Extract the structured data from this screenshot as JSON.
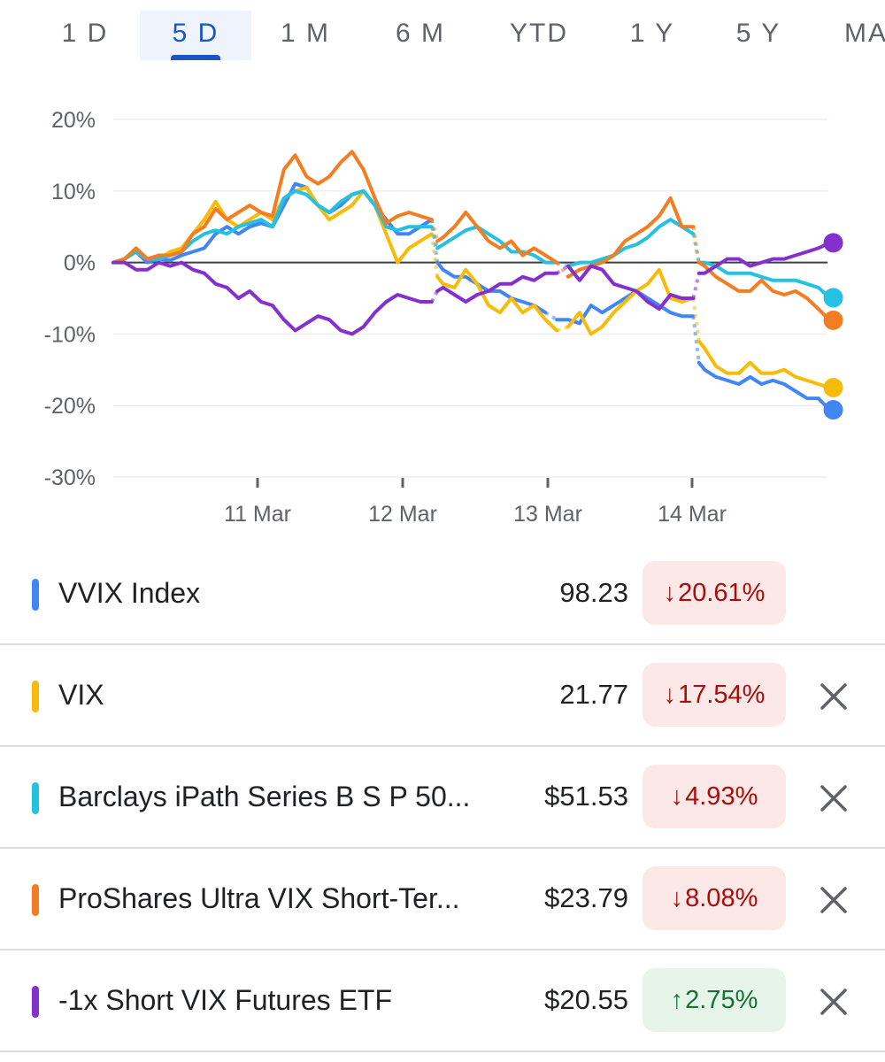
{
  "tabs": [
    {
      "label": "1 D",
      "active": false
    },
    {
      "label": "5 D",
      "active": true
    },
    {
      "label": "1 M",
      "active": false
    },
    {
      "label": "6 M",
      "active": false
    },
    {
      "label": "YTD",
      "active": false
    },
    {
      "label": "1 Y",
      "active": false
    },
    {
      "label": "5 Y",
      "active": false
    },
    {
      "label": "MAX",
      "active": false
    }
  ],
  "chart_data": {
    "type": "line",
    "y_unit": "%",
    "ylim": [
      -30,
      20
    ],
    "y_ticks": [
      "20%",
      "10%",
      "0%",
      "-10%",
      "-20%",
      "-30%"
    ],
    "y_tick_values": [
      20,
      10,
      0,
      -10,
      -20,
      -30
    ],
    "x_labels": [
      "11 Mar",
      "12 Mar",
      "13 Mar",
      "14 Mar"
    ],
    "grid": true,
    "series": [
      {
        "name": "VVIX Index",
        "color": "#4285f4",
        "segments": [
          [
            0,
            0,
            1,
            0.5,
            2,
            1.5,
            3,
            0,
            4,
            0.5,
            5,
            0.3,
            6,
            1,
            7,
            1.5,
            8,
            2,
            9,
            4,
            10,
            5,
            11,
            4,
            12,
            5,
            13,
            5.5,
            14,
            5,
            15,
            8,
            16,
            11,
            17,
            10.5,
            18,
            8,
            19,
            7,
            20,
            8,
            21,
            9.5,
            22,
            10,
            23,
            8,
            24,
            6,
            25,
            4,
            26,
            4,
            27,
            5,
            28,
            6
          ],
          [
            28.5,
            0,
            29,
            -1,
            30,
            -2,
            31,
            -2,
            32,
            -3,
            33,
            -4,
            34,
            -4,
            35,
            -5,
            36,
            -5.5,
            37,
            -6,
            38,
            -7
          ],
          [
            39,
            -8,
            40,
            -8,
            41,
            -8.5,
            42,
            -6,
            43,
            -7,
            44,
            -6,
            45,
            -5,
            46,
            -4,
            47,
            -5,
            48,
            -6,
            49,
            -7,
            50,
            -7.5,
            51,
            -7.5
          ],
          [
            51.5,
            -14,
            52,
            -15,
            53,
            -16,
            54,
            -16.5,
            55,
            -17,
            56,
            -16,
            57,
            -17,
            58,
            -16.5,
            59,
            -17,
            60,
            -18,
            61,
            -19,
            62,
            -19,
            63,
            -20.6
          ]
        ]
      },
      {
        "name": "VIX",
        "color": "#f9bb09",
        "segments": [
          [
            0,
            0,
            1,
            0.5,
            2,
            1.5,
            3,
            0.5,
            4,
            0.5,
            5,
            1.5,
            6,
            2,
            7,
            4,
            8,
            6,
            9,
            8.5,
            10,
            6,
            11,
            5,
            12,
            6,
            13,
            7,
            14,
            6,
            15,
            9,
            16,
            10,
            17,
            10.5,
            18,
            8,
            19,
            6,
            20,
            7,
            21,
            8,
            22,
            10,
            23,
            8,
            24,
            4,
            25,
            0,
            26,
            2,
            27,
            3,
            28,
            4
          ],
          [
            28.5,
            -2,
            29,
            -3,
            30,
            -3.5,
            31,
            -1,
            32,
            -3,
            33,
            -6,
            34,
            -7,
            35,
            -5,
            36,
            -7,
            37,
            -6,
            38,
            -8,
            39,
            -9.5
          ],
          [
            40,
            -9,
            41,
            -7,
            42,
            -10,
            43,
            -9,
            44,
            -7,
            45,
            -5.5,
            46,
            -4,
            47,
            -3,
            48,
            -1,
            49,
            -5,
            50,
            -5.5,
            51,
            -5
          ],
          [
            51.5,
            -11,
            52,
            -12,
            53,
            -14.5,
            54,
            -15.5,
            55,
            -15.5,
            56,
            -14,
            57,
            -15.5,
            58,
            -15.5,
            59,
            -15,
            60,
            -16,
            61,
            -16.5,
            62,
            -17,
            63,
            -17.5
          ]
        ]
      },
      {
        "name": "Barclays iPath Series B S P 50...",
        "color": "#24c1e0",
        "segments": [
          [
            0,
            0,
            1,
            0.5,
            2,
            1.5,
            3,
            0.5,
            4,
            0.5,
            5,
            1,
            6,
            1.5,
            7,
            3,
            8,
            4,
            9,
            4.5,
            10,
            4,
            11,
            5,
            12,
            5.5,
            13,
            6,
            14,
            5,
            15,
            9,
            16,
            10,
            17,
            9.5,
            18,
            8,
            19,
            7,
            20,
            8.5,
            21,
            9.5,
            22,
            10,
            23,
            8,
            24,
            5,
            25,
            4.5,
            26,
            5,
            27,
            5,
            28,
            5
          ],
          [
            28.5,
            2,
            29,
            2.5,
            30,
            3.5,
            31,
            4.5,
            32,
            5,
            33,
            4,
            34,
            3,
            35,
            1.5,
            36,
            1.5,
            37,
            1,
            38,
            0,
            39,
            0
          ],
          [
            40,
            -0.5,
            41,
            0,
            42,
            0,
            43,
            0.5,
            44,
            1,
            45,
            2,
            46,
            2.5,
            47,
            3.5,
            48,
            5,
            49,
            6,
            50,
            5,
            51,
            4
          ],
          [
            51.5,
            0,
            52,
            0,
            53,
            -0.5,
            54,
            -1.5,
            55,
            -1.5,
            56,
            -1.5,
            57,
            -2,
            58,
            -2.5,
            59,
            -2.5,
            60,
            -2.5,
            61,
            -3,
            62,
            -3.5,
            63,
            -4.93
          ]
        ]
      },
      {
        "name": "ProShares Ultra VIX Short-Ter...",
        "color": "#f37d22",
        "segments": [
          [
            0,
            0,
            1,
            0.5,
            2,
            2,
            3,
            0.5,
            4,
            1,
            5,
            1,
            6,
            1.5,
            7,
            4,
            8,
            5,
            9,
            7.5,
            10,
            6,
            11,
            7,
            12,
            8,
            13,
            7,
            14,
            6.5,
            15,
            13,
            16,
            15,
            17,
            12,
            18,
            11,
            19,
            12,
            20,
            14,
            21,
            15.5,
            22,
            13,
            23,
            9,
            24,
            5.5,
            25,
            6.5,
            26,
            7,
            27,
            6.5,
            28,
            6
          ],
          [
            28.5,
            3,
            29,
            3.5,
            30,
            5,
            31,
            7,
            32,
            5,
            33,
            3,
            34,
            2,
            35,
            3,
            36,
            1,
            37,
            2,
            38,
            1,
            39,
            0
          ],
          [
            40,
            -2,
            41,
            -1,
            42,
            -0.5,
            43,
            0,
            44,
            1,
            45,
            3,
            46,
            4,
            47,
            5,
            48,
            6.5,
            49,
            9,
            50,
            5,
            51,
            5
          ],
          [
            51.5,
            0,
            52,
            -0.5,
            53,
            -2,
            54,
            -3,
            55,
            -4,
            56,
            -4,
            57,
            -2.5,
            58,
            -4,
            59,
            -4.5,
            60,
            -4,
            61,
            -5,
            62,
            -6.5,
            63,
            -8.08
          ]
        ]
      },
      {
        "name": "-1x Short VIX Futures ETF",
        "color": "#8430ce",
        "segments": [
          [
            0,
            0,
            1,
            0,
            2,
            -1,
            3,
            -1,
            4,
            0,
            5,
            -0.5,
            6,
            0,
            7,
            -1,
            8,
            -1.5,
            9,
            -3,
            10,
            -3.5,
            11,
            -5,
            12,
            -4,
            13,
            -5.5,
            14,
            -6,
            15,
            -8,
            16,
            -9.5,
            17,
            -8.5,
            18,
            -7.5,
            19,
            -8,
            20,
            -9.5,
            21,
            -10,
            22,
            -9,
            23,
            -7,
            24,
            -5.5,
            25,
            -4.5,
            26,
            -5,
            27,
            -5.5,
            28,
            -5.5
          ],
          [
            28.5,
            -4,
            29,
            -3.5,
            30,
            -4.5,
            31,
            -5.5,
            32,
            -4.5,
            33,
            -4,
            34,
            -3,
            35,
            -3,
            36,
            -2,
            37,
            -2.5,
            38,
            -1.5,
            39,
            -1.5
          ],
          [
            40,
            -0.5,
            41,
            -2.5,
            42,
            -0.5,
            43,
            -1,
            44,
            -3,
            45,
            -3.5,
            46,
            -4,
            47,
            -5.5,
            48,
            -6.5,
            49,
            -4.5,
            50,
            -5,
            51,
            -5
          ],
          [
            51.5,
            -1.5,
            52,
            -1.5,
            53,
            -0.5,
            54,
            0.5,
            55,
            0.5,
            56,
            -0.5,
            57,
            0,
            58,
            0.5,
            59,
            0.5,
            60,
            1,
            61,
            1.5,
            62,
            2,
            63,
            2.75
          ]
        ]
      }
    ]
  },
  "rows": [
    {
      "name": "VVIX Index",
      "price": "98.23",
      "change": "20.61%",
      "direction": "down",
      "color": "#4285f4",
      "removable": false
    },
    {
      "name": "VIX",
      "price": "21.77",
      "change": "17.54%",
      "direction": "down",
      "color": "#f9bb09",
      "removable": true
    },
    {
      "name": "Barclays iPath Series B S P 50...",
      "price": "$51.53",
      "change": "4.93%",
      "direction": "down",
      "color": "#24c1e0",
      "removable": true
    },
    {
      "name": "ProShares Ultra VIX Short-Ter...",
      "price": "$23.79",
      "change": "8.08%",
      "direction": "down",
      "color": "#f37d22",
      "removable": true
    },
    {
      "name": "-1x Short VIX Futures ETF",
      "price": "$20.55",
      "change": "2.75%",
      "direction": "up",
      "color": "#8430ce",
      "removable": true
    }
  ],
  "icons": {
    "down": "arrow-down-icon",
    "up": "arrow-up-icon",
    "close": "close-icon"
  }
}
